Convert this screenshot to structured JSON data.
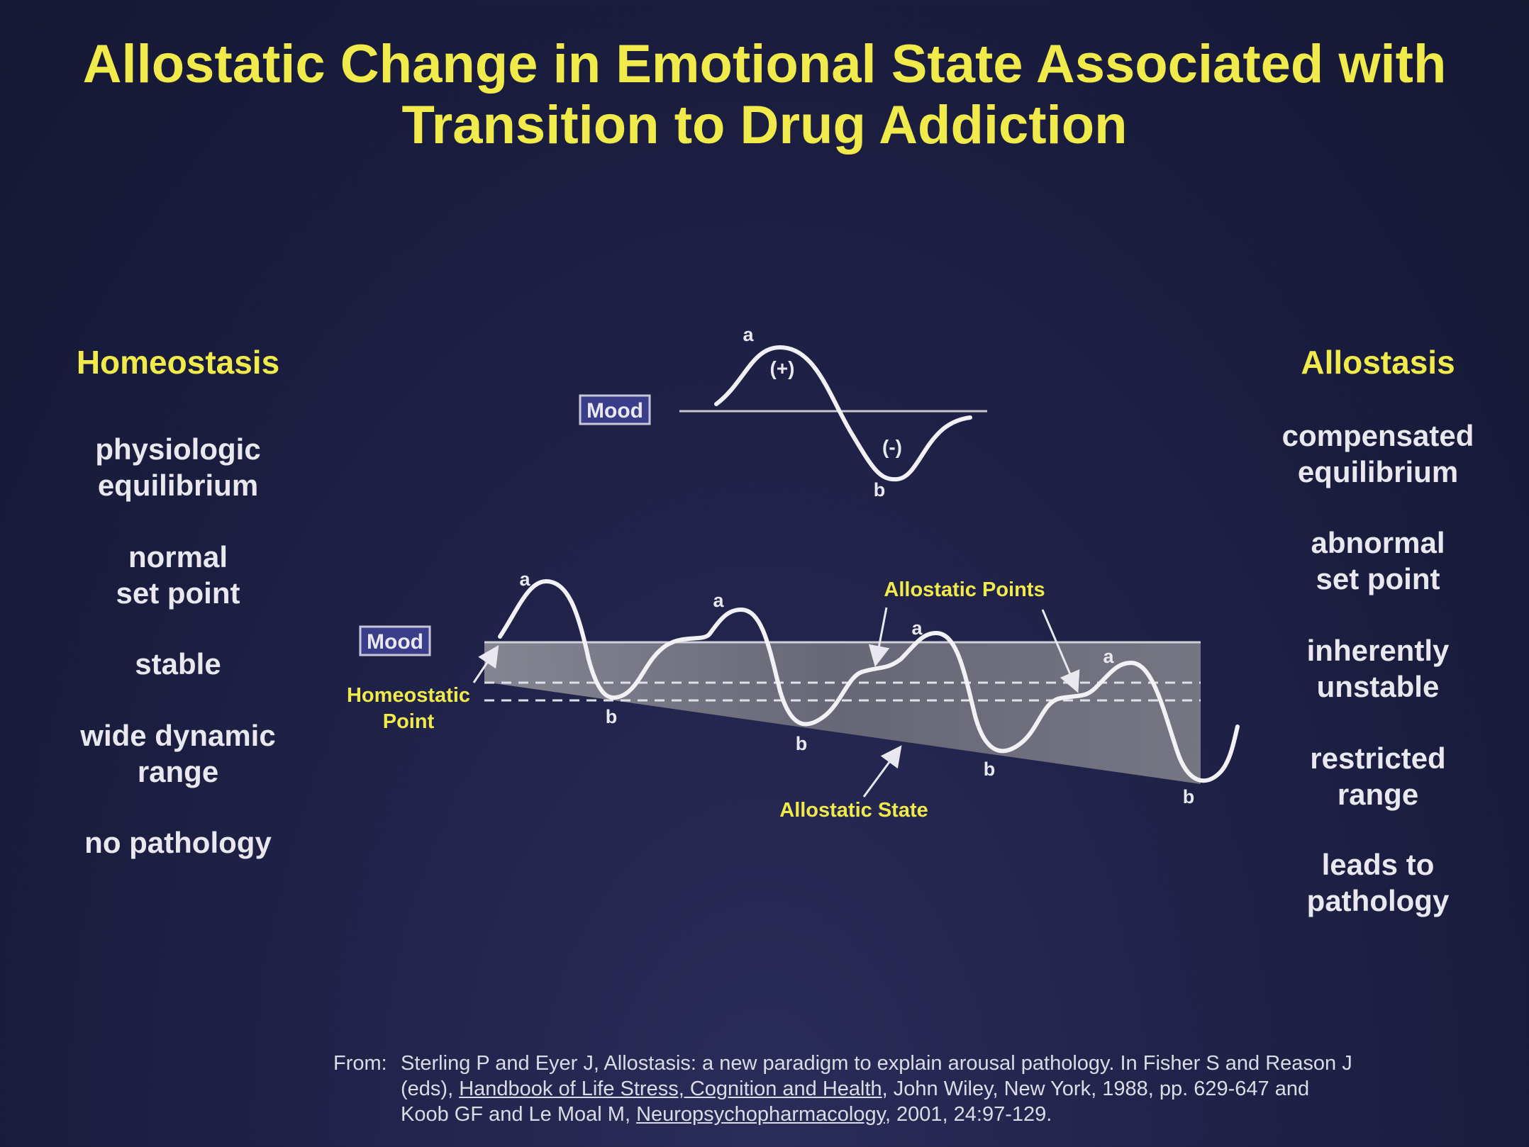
{
  "title": {
    "line1": "Allostatic Change in Emotional State Associated with",
    "line2": "Transition to Drug Addiction"
  },
  "left": {
    "heading": "Homeostasis",
    "items": [
      [
        "physiologic",
        "equilibrium"
      ],
      [
        "normal",
        "set point"
      ],
      [
        "stable"
      ],
      [
        "wide dynamic",
        "range"
      ],
      [
        "no pathology"
      ]
    ]
  },
  "right": {
    "heading": "Allostasis",
    "items": [
      [
        "compensated",
        "equilibrium"
      ],
      [
        "abnormal",
        "set point"
      ],
      [
        "inherently",
        "unstable"
      ],
      [
        "restricted",
        "range"
      ],
      [
        "leads to",
        "pathology"
      ]
    ]
  },
  "top_diagram": {
    "mood_label": "Mood",
    "peak_label": "a",
    "trough_label": "b",
    "positive_label": "(+)",
    "negative_label": "(-)"
  },
  "bottom_diagram": {
    "mood_label": "Mood",
    "homeostatic_point": [
      "Homeostatic",
      "Point"
    ],
    "allostatic_points": "Allostatic Points",
    "allostatic_state": "Allostatic State",
    "peak_label": "a",
    "trough_label": "b"
  },
  "reference": {
    "from": "From:",
    "line1": "Sterling P and Eyer J, Allostasis: a new paradigm to explain arousal pathology. In Fisher S and Reason J",
    "line2_pre": "(eds), ",
    "line2_title": "Handbook of Life Stress, Cognition and Health",
    "line2_post": ", John Wiley, New York, 1988, pp. 629-647 and",
    "line3_pre": "Koob GF and Le Moal M, ",
    "line3_title": "Neuropsychopharmacology",
    "line3_post": ", 2001, 24:97-129."
  },
  "colors": {
    "title": "#f0ea4a",
    "text": "#e8e8ee",
    "background": "#1f2147",
    "mood_box": "#3a3d8a"
  }
}
